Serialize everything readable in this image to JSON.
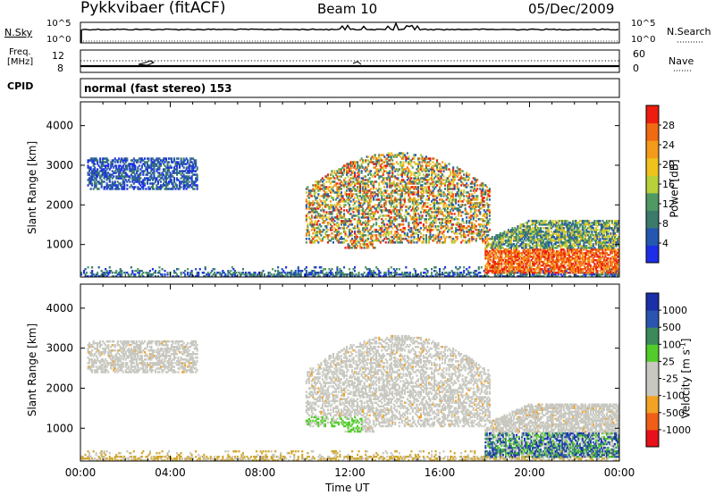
{
  "header": {
    "station": "Pykkvibaer (fitACF)",
    "beam": "Beam 10",
    "date": "05/Dec/2009"
  },
  "top_panels": {
    "nsky_label": "N.Sky",
    "nsky_ticks": [
      "10^5",
      "10^0"
    ],
    "nsearch_label": "N.Search",
    "nsearch_ticks": [
      "10^5",
      "10^0"
    ],
    "freq_label": "Freq.",
    "freq_unit": "[MHz]",
    "freq_ticks": [
      "12",
      "8"
    ],
    "nave_label": "Nave",
    "nave_ticks": [
      "60",
      "0"
    ],
    "cpid_label": "CPID",
    "cpid_text": "normal (fast stereo) 153"
  },
  "colors": {
    "power": [
      "#1d2ee8",
      "#2457b0",
      "#3c7a6c",
      "#4f9a62",
      "#b8d13a",
      "#f0c21c",
      "#f49a1a",
      "#f06a12",
      "#ee1d0f"
    ],
    "velocity": [
      "#e8101a",
      "#ef5f17",
      "#f2a224",
      "#c8c8c0",
      "#c8c8c0",
      "#52cc2a",
      "#3a8a5a",
      "#2a54b0",
      "#1b2fa8"
    ],
    "ground_scatter": "#d2a834"
  },
  "chart_data": [
    {
      "type": "heatmap",
      "title": "Power",
      "ylabel": "Slant Range [km]",
      "xlabel": "",
      "x_ticks": [
        "00:00",
        "04:00",
        "08:00",
        "12:00",
        "16:00",
        "20:00",
        "00:00"
      ],
      "xlim_hours": [
        0,
        24
      ],
      "y_ticks": [
        1000,
        2000,
        3000,
        4000
      ],
      "ylim_km": [
        180,
        4600
      ],
      "colorbar_label": "Power [dB]",
      "colorbar_ticks": [
        "28",
        "24",
        "20",
        "16",
        "12",
        "8",
        "4"
      ],
      "colorbar_range": [
        0,
        32
      ]
    },
    {
      "type": "heatmap",
      "title": "Velocity",
      "ylabel": "Slant Range [km]",
      "xlabel": "Time UT",
      "x_ticks": [
        "00:00",
        "04:00",
        "08:00",
        "12:00",
        "16:00",
        "20:00",
        "00:00"
      ],
      "xlim_hours": [
        0,
        24
      ],
      "y_ticks": [
        1000,
        2000,
        3000,
        4000
      ],
      "ylim_km": [
        180,
        4600
      ],
      "colorbar_label": "Velocity [m s-1]",
      "colorbar_ticks": [
        "1000",
        "500",
        "100",
        "25",
        "-25",
        "-100",
        "-500",
        "-1000"
      ]
    }
  ]
}
